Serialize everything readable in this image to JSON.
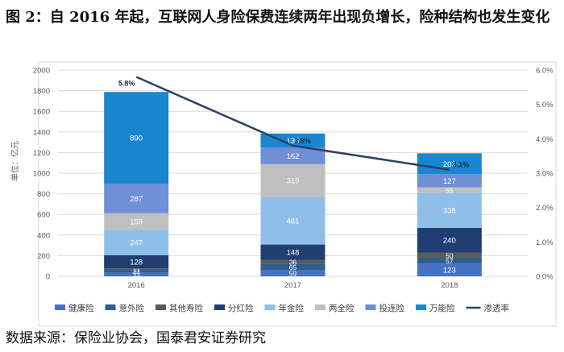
{
  "figure": {
    "title": "图 2：自 2016 年起，互联网人身险保费连续两年出现负增长，险种结构也发生变化",
    "source": "数据来源：保险业协会，国泰君安证券研究"
  },
  "chart_data": {
    "type": "bar",
    "stacked": true,
    "categories": [
      "2016",
      "2017",
      "2018"
    ],
    "ylabel": "单位：亿元",
    "ylim": [
      0,
      2000
    ],
    "y_ticks": [
      0,
      200,
      400,
      600,
      800,
      1000,
      1200,
      1400,
      1600,
      1800,
      2000
    ],
    "y2lim": [
      0,
      6
    ],
    "y2_ticks": [
      "0.0%",
      "1.0%",
      "2.0%",
      "3.0%",
      "4.0%",
      "5.0%",
      "6.0%"
    ],
    "grid": true,
    "legend_position": "bottom",
    "series": [
      {
        "name": "健康险",
        "color": "#4472C4",
        "values": [
          33,
          59,
          123
        ]
      },
      {
        "name": "意外险",
        "color": "#2E5E8E",
        "values": [
          33,
          65,
          57
        ]
      },
      {
        "name": "其他寿险",
        "color": "#595959",
        "values": [
          11,
          36,
          50
        ]
      },
      {
        "name": "分红险",
        "color": "#1F3F73",
        "values": [
          128,
          148,
          240
        ]
      },
      {
        "name": "年金险",
        "color": "#8FBFE8",
        "values": [
          247,
          461,
          338
        ]
      },
      {
        "name": "两全险",
        "color": "#BFBFBF",
        "values": [
          159,
          319,
          55
        ]
      },
      {
        "name": "投连险",
        "color": "#6F8FD6",
        "values": [
          287,
          162,
          127
        ]
      },
      {
        "name": "万能险",
        "color": "#1A86CF",
        "values": [
          890,
          135,
          203
        ]
      }
    ],
    "line_series": {
      "name": "渗透率",
      "color": "#2E3F66",
      "values": [
        5.8,
        3.8,
        3.1
      ],
      "labels": [
        "5.8%",
        "3.8%",
        "3.1%"
      ]
    }
  }
}
